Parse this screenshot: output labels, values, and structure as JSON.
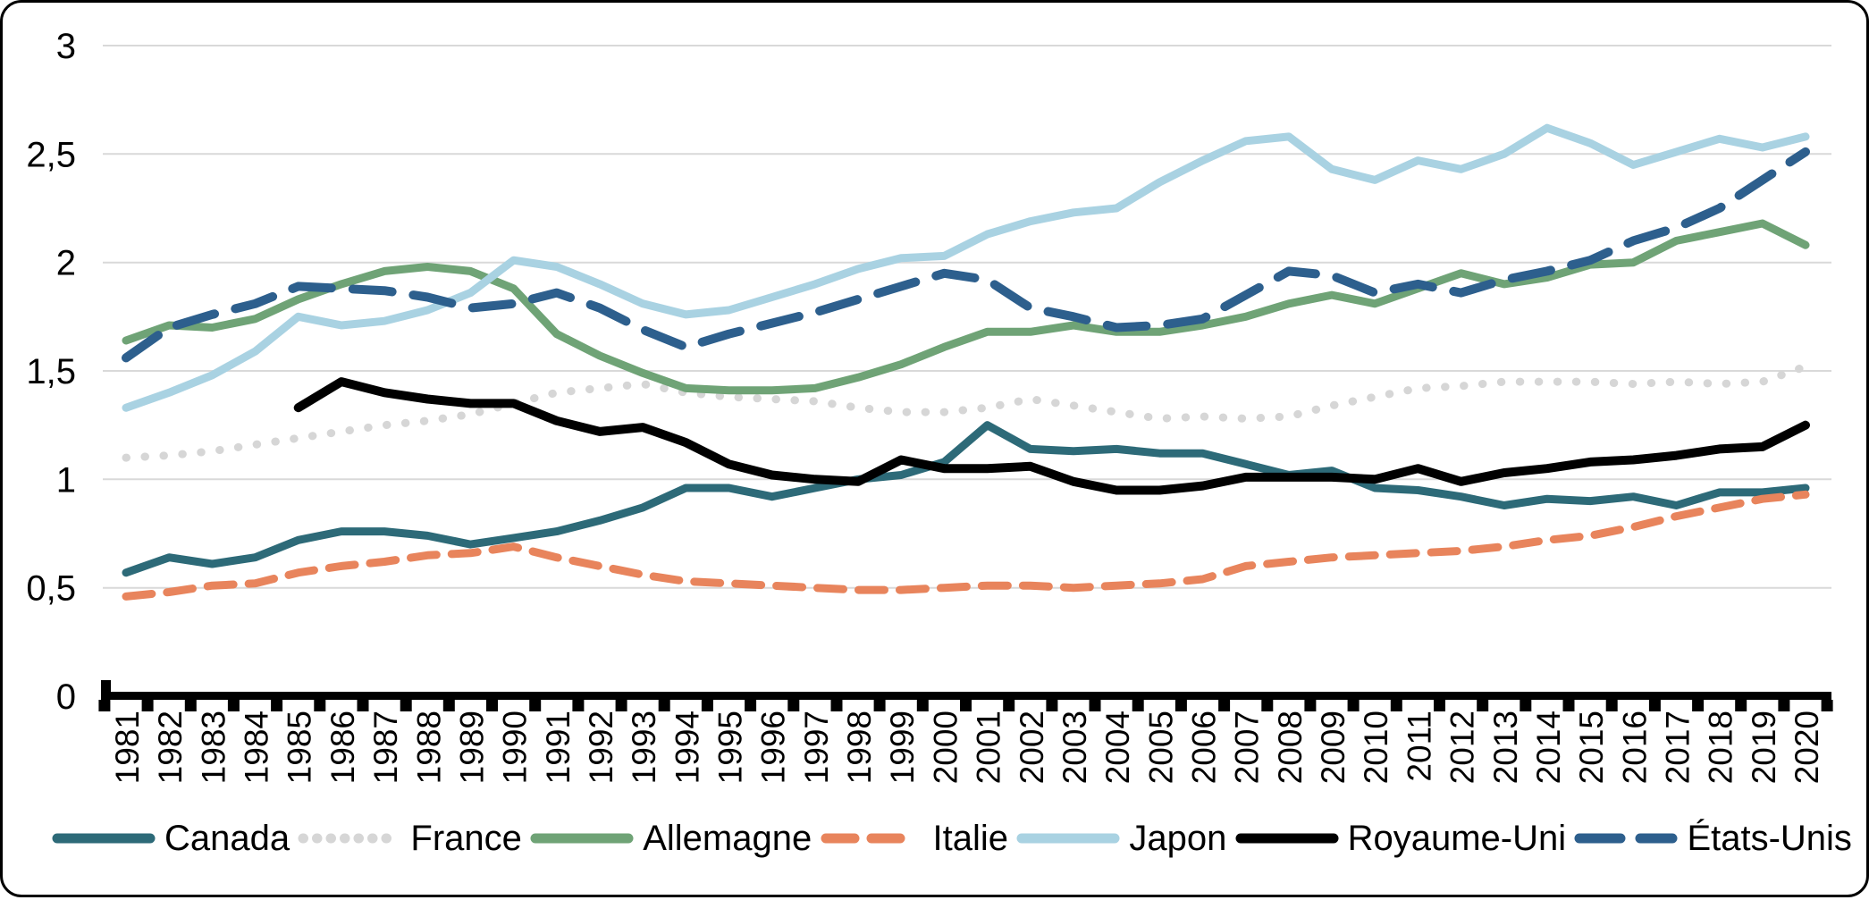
{
  "chart_data": {
    "type": "line",
    "title": "",
    "x_label": "",
    "y_label": "",
    "ylim": [
      0,
      3
    ],
    "grid": true,
    "legend_position": "bottom",
    "decimal_style": "comma",
    "y_ticks": [
      {
        "value": 0,
        "label": "0"
      },
      {
        "value": 0.5,
        "label": "0,5"
      },
      {
        "value": 1,
        "label": "1"
      },
      {
        "value": 1.5,
        "label": "1,5"
      },
      {
        "value": 2,
        "label": "2"
      },
      {
        "value": 2.5,
        "label": "2,5"
      },
      {
        "value": 3,
        "label": "3"
      }
    ],
    "years": [
      "1981",
      "1982",
      "1983",
      "1984",
      "1985",
      "1986",
      "1987",
      "1988",
      "1989",
      "1990",
      "1991",
      "1992",
      "1993",
      "1994",
      "1995",
      "1996",
      "1997",
      "1998",
      "1999",
      "2000",
      "2001",
      "2002",
      "2003",
      "2004",
      "2005",
      "2006",
      "2007",
      "2008",
      "2009",
      "2010",
      "2011",
      "2012",
      "2013",
      "2014",
      "2015",
      "2016",
      "2017",
      "2018",
      "2019",
      "2020"
    ],
    "series": [
      {
        "name": "Canada",
        "slug": "canada",
        "color": "#2d6a78",
        "style": "solid",
        "values": [
          0.57,
          0.64,
          0.61,
          0.64,
          0.72,
          0.76,
          0.76,
          0.74,
          0.7,
          0.73,
          0.76,
          0.81,
          0.87,
          0.96,
          0.96,
          0.92,
          0.96,
          1.0,
          1.02,
          1.08,
          1.25,
          1.14,
          1.13,
          1.14,
          1.12,
          1.12,
          1.07,
          1.02,
          1.04,
          0.96,
          0.95,
          0.92,
          0.88,
          0.91,
          0.9,
          0.92,
          0.88,
          0.94,
          0.94,
          0.96
        ]
      },
      {
        "name": "France",
        "slug": "france",
        "color": "#d6d6d6",
        "style": "dotted",
        "values": [
          1.1,
          1.11,
          1.13,
          1.16,
          1.19,
          1.22,
          1.25,
          1.27,
          1.3,
          1.35,
          1.4,
          1.42,
          1.44,
          1.4,
          1.38,
          1.37,
          1.36,
          1.33,
          1.31,
          1.31,
          1.33,
          1.37,
          1.34,
          1.31,
          1.28,
          1.29,
          1.28,
          1.29,
          1.34,
          1.38,
          1.42,
          1.43,
          1.45,
          1.45,
          1.45,
          1.44,
          1.45,
          1.44,
          1.45,
          1.52
        ]
      },
      {
        "name": "Allemagne",
        "slug": "allemagne",
        "color": "#6fa376",
        "style": "solid",
        "values": [
          1.64,
          1.71,
          1.7,
          1.74,
          1.83,
          1.9,
          1.96,
          1.98,
          1.96,
          1.88,
          1.67,
          1.57,
          1.49,
          1.42,
          1.41,
          1.41,
          1.42,
          1.47,
          1.53,
          1.61,
          1.68,
          1.68,
          1.71,
          1.68,
          1.68,
          1.71,
          1.75,
          1.81,
          1.85,
          1.81,
          1.88,
          1.95,
          1.9,
          1.93,
          1.99,
          2.0,
          2.1,
          2.14,
          2.18,
          2.08
        ]
      },
      {
        "name": "Italie",
        "slug": "italie",
        "color": "#e8845c",
        "style": "dashed",
        "values": [
          0.46,
          0.48,
          0.51,
          0.52,
          0.57,
          0.6,
          0.62,
          0.65,
          0.66,
          0.69,
          0.64,
          0.6,
          0.56,
          0.53,
          0.52,
          0.51,
          0.5,
          0.49,
          0.49,
          0.5,
          0.51,
          0.51,
          0.5,
          0.51,
          0.52,
          0.54,
          0.6,
          0.62,
          0.64,
          0.65,
          0.66,
          0.67,
          0.69,
          0.72,
          0.74,
          0.78,
          0.83,
          0.87,
          0.91,
          0.93
        ]
      },
      {
        "name": "Japon",
        "slug": "japon",
        "color": "#a9d2e2",
        "style": "solid",
        "values": [
          1.33,
          1.4,
          1.48,
          1.59,
          1.75,
          1.71,
          1.73,
          1.78,
          1.86,
          2.01,
          1.98,
          1.9,
          1.81,
          1.76,
          1.78,
          1.84,
          1.9,
          1.97,
          2.02,
          2.03,
          2.13,
          2.19,
          2.23,
          2.25,
          2.37,
          2.47,
          2.56,
          2.58,
          2.43,
          2.38,
          2.47,
          2.43,
          2.5,
          2.62,
          2.55,
          2.45,
          2.51,
          2.57,
          2.53,
          2.58
        ]
      },
      {
        "name": "Royaume-Uni",
        "slug": "royaume-uni",
        "color": "#000000",
        "style": "solid",
        "values": [
          null,
          null,
          null,
          null,
          1.33,
          1.45,
          1.4,
          1.37,
          1.35,
          1.35,
          1.27,
          1.22,
          1.24,
          1.17,
          1.07,
          1.02,
          1.0,
          0.99,
          1.09,
          1.05,
          1.05,
          1.06,
          0.99,
          0.95,
          0.95,
          0.97,
          1.01,
          1.01,
          1.01,
          1.0,
          1.05,
          0.99,
          1.03,
          1.05,
          1.08,
          1.09,
          1.11,
          1.14,
          1.15,
          1.25
        ]
      },
      {
        "name": "États-Unis",
        "slug": "etats-unis",
        "color": "#2d5f8d",
        "style": "dash-long",
        "values": [
          1.56,
          1.7,
          1.76,
          1.81,
          1.89,
          1.88,
          1.87,
          1.84,
          1.79,
          1.81,
          1.86,
          1.79,
          1.69,
          1.61,
          1.67,
          1.72,
          1.77,
          1.83,
          1.89,
          1.95,
          1.92,
          1.79,
          1.75,
          1.7,
          1.71,
          1.74,
          1.85,
          1.96,
          1.94,
          1.86,
          1.9,
          1.86,
          1.92,
          1.96,
          2.01,
          2.1,
          2.16,
          2.25,
          2.38,
          2.51
        ]
      }
    ]
  },
  "colors": {
    "gridline": "#d9d9d9",
    "axis": "#000000",
    "text": "#000000",
    "background": "#ffffff"
  }
}
